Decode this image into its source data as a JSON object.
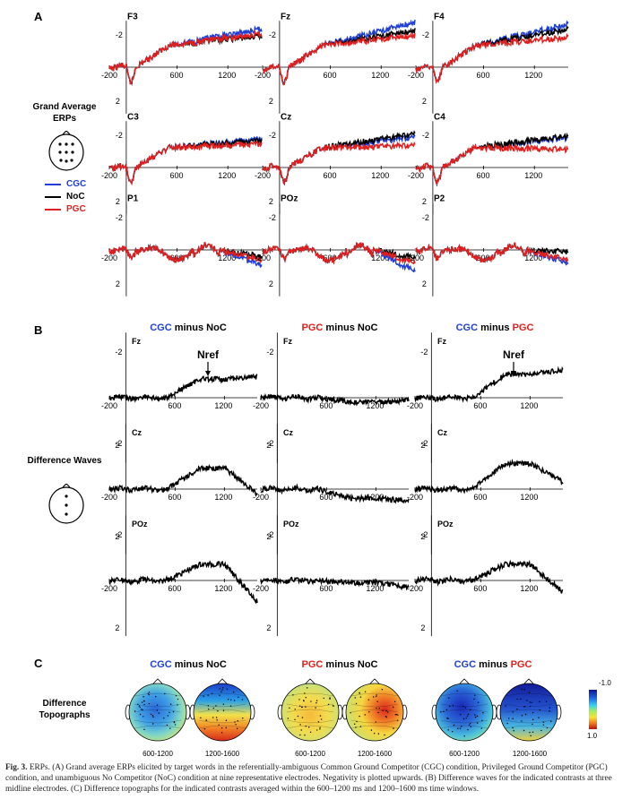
{
  "panel_a": {
    "label": "A",
    "sidebar_title": "Grand Average ERPs",
    "legend": [
      {
        "label": "CGC",
        "color": "#1f3fd6"
      },
      {
        "label": "NoC",
        "color": "#000000"
      },
      {
        "label": "PGC",
        "color": "#e0201e"
      }
    ]
  },
  "panel_b": {
    "label": "B",
    "sidebar_title": "Difference Waves",
    "annotation": "Nref",
    "column_titles": [
      {
        "a": "CGC",
        "a_color": "#1f3fd6",
        "mid": " minus ",
        "b": "NoC",
        "b_color": "#000000"
      },
      {
        "a": "PGC",
        "a_color": "#e0201e",
        "mid": " minus ",
        "b": "NoC",
        "b_color": "#000000"
      },
      {
        "a": "CGC",
        "a_color": "#1f3fd6",
        "mid": " minus ",
        "b": "PGC",
        "b_color": "#e0201e"
      }
    ]
  },
  "panel_c": {
    "label": "C",
    "sidebar_title": "Difference Topographs",
    "window_labels": [
      "600-1200",
      "1200-1600"
    ],
    "colorbar_top": "-1.0",
    "colorbar_bottom": "1.0"
  },
  "caption": {
    "bold": "Fig. 3.",
    "text": " ERPs. (A) Grand average ERPs elicited by target words in the referentially-ambiguous Common Ground Competitor (CGC) condition, Privileged Ground Competitor (PGC) condition, and unambiguous No Competitor (NoC) condition at nine representative electrodes. Negativity is plotted upwards. (B) Difference waves for the indicated contrasts at three midline electrodes. (C) Difference topographs for the indicated contrasts averaged within the 600–1200 ms and 1200–1600 ms time windows."
  },
  "chart_data": [
    {
      "type": "line",
      "title": "Grand Average ERPs",
      "xlabel": "",
      "ylabel": "",
      "xlim": [
        -200,
        1600
      ],
      "ylim": [
        2,
        -2.8
      ],
      "x_ticks": [
        -200,
        600,
        1200
      ],
      "y_ticks": [
        -2,
        2
      ],
      "y_inverted": true,
      "series_names": [
        "CGC",
        "NoC",
        "PGC"
      ],
      "electrodes": [
        {
          "name": "F3",
          "shape": "frontal",
          "end": {
            "CGC": -2.3,
            "NoC": -1.9,
            "PGC": -2.0
          }
        },
        {
          "name": "Fz",
          "shape": "frontal",
          "end": {
            "CGC": -2.7,
            "NoC": -2.2,
            "PGC": -1.9
          }
        },
        {
          "name": "F4",
          "shape": "frontal",
          "end": {
            "CGC": -2.6,
            "NoC": -2.3,
            "PGC": -1.8
          }
        },
        {
          "name": "C3",
          "shape": "central",
          "end": {
            "CGC": -1.7,
            "NoC": -1.6,
            "PGC": -1.4
          }
        },
        {
          "name": "Cz",
          "shape": "central",
          "end": {
            "CGC": -1.8,
            "NoC": -2.0,
            "PGC": -1.3
          }
        },
        {
          "name": "C4",
          "shape": "central",
          "end": {
            "CGC": -1.8,
            "NoC": -1.9,
            "PGC": -1.1
          }
        },
        {
          "name": "P1",
          "shape": "parietal",
          "end": {
            "CGC": 0.9,
            "NoC": 0.4,
            "PGC": 0.6
          }
        },
        {
          "name": "POz",
          "shape": "parietal",
          "end": {
            "CGC": 1.3,
            "NoC": 0.5,
            "PGC": 0.8
          }
        },
        {
          "name": "P2",
          "shape": "parietal",
          "end": {
            "CGC": 0.8,
            "NoC": 0.1,
            "PGC": 0.6
          }
        }
      ]
    },
    {
      "type": "line",
      "title": "Difference Waves",
      "xlabel": "",
      "ylabel": "",
      "xlim": [
        -200,
        1600
      ],
      "ylim": [
        2,
        -2.8
      ],
      "x_ticks": [
        -200,
        600,
        1200
      ],
      "y_ticks": [
        -2,
        2
      ],
      "y_inverted": true,
      "contrasts": [
        "CGC minus NoC",
        "PGC minus NoC",
        "CGC minus PGC"
      ],
      "electrodes": [
        "Fz",
        "Cz",
        "POz"
      ],
      "grid": [
        [
          {
            "peak": -0.8,
            "late": -0.9
          },
          {
            "peak": 0.2,
            "late": 0.1
          },
          {
            "peak": -1.0,
            "late": -1.2
          }
        ],
        [
          {
            "peak": -0.9,
            "late": 0.2
          },
          {
            "peak": 0.4,
            "late": 0.5
          },
          {
            "peak": -1.1,
            "late": -0.3
          }
        ],
        [
          {
            "peak": -0.7,
            "late": 0.9
          },
          {
            "peak": 0.1,
            "late": 0.3
          },
          {
            "peak": -0.7,
            "late": 0.5
          }
        ]
      ]
    }
  ]
}
